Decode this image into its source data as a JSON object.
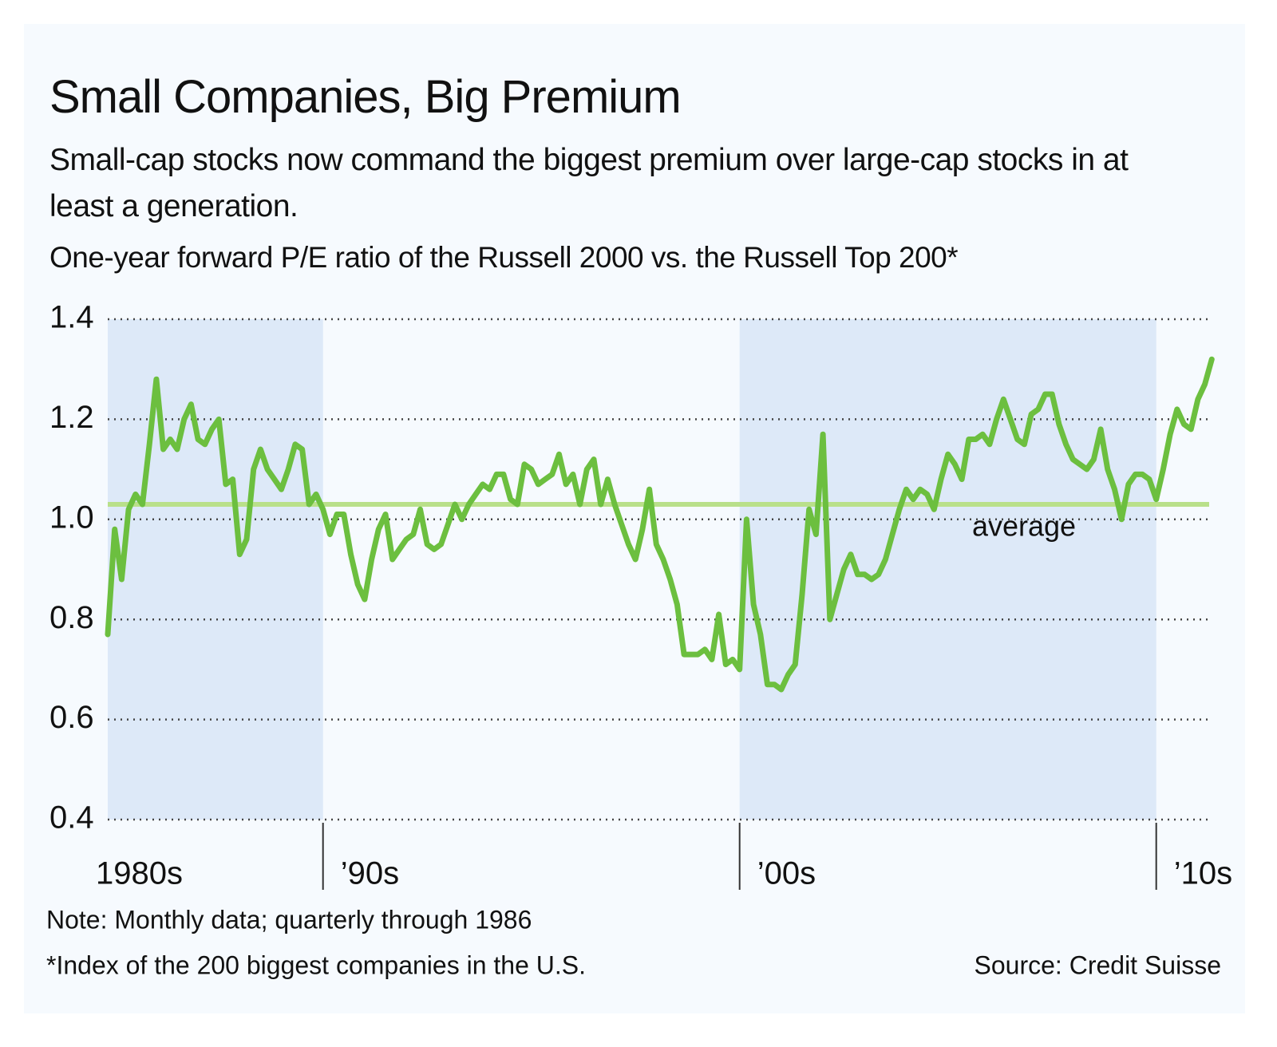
{
  "chart_data": {
    "type": "line",
    "title": "Small Companies, Big Premium",
    "subtitle": "Small-cap stocks now command the biggest premium over large-cap stocks in at least a generation.",
    "chart_title": "One-year forward P/E ratio of the Russell 2000 vs. the Russell Top 200*",
    "note": "Note: Monthly data; quarterly through 1986",
    "footnote": "*Index of the 200 biggest companies in the U.S.",
    "source": "Source: Credit Suisse",
    "categories": [
      "1980s",
      null,
      null,
      null,
      null,
      null,
      null,
      null,
      null,
      null,
      null,
      null,
      null,
      null,
      null,
      null,
      null,
      null,
      null,
      null,
      null,
      null,
      null,
      null,
      null,
      null,
      null,
      null,
      null,
      null,
      null,
      "’90s",
      null,
      null,
      null,
      null,
      null,
      null,
      null,
      null,
      null,
      null,
      null,
      null,
      null,
      null,
      null,
      null,
      null,
      null,
      null,
      null,
      null,
      null,
      null,
      null,
      null,
      null,
      null,
      null,
      null,
      null,
      null,
      null,
      null,
      null,
      null,
      null,
      null,
      null,
      null,
      null,
      null,
      null,
      null,
      null,
      null,
      null,
      null,
      null,
      null,
      null,
      null,
      null,
      null,
      null,
      null,
      null,
      null,
      null,
      null,
      "’00s",
      null,
      null,
      null,
      null,
      null,
      null,
      null,
      null,
      null,
      null,
      null,
      null,
      null,
      null,
      null,
      null,
      null,
      null,
      null,
      null,
      null,
      null,
      null,
      null,
      null,
      null,
      null,
      null,
      null,
      null,
      null,
      null,
      null,
      null,
      null,
      null,
      null,
      null,
      null,
      null,
      null,
      null,
      null,
      null,
      null,
      null,
      null,
      null,
      null,
      null,
      null,
      null,
      null,
      null,
      null,
      null,
      null,
      null,
      null,
      "’10s",
      null,
      null,
      null,
      null,
      null,
      null,
      null,
      null
    ],
    "series": [
      {
        "name": "P/E ratio",
        "color": "#6cbf3f",
        "values": [
          0.77,
          0.98,
          0.88,
          1.02,
          1.05,
          1.03,
          1.15,
          1.28,
          1.14,
          1.16,
          1.14,
          1.2,
          1.23,
          1.16,
          1.15,
          1.18,
          1.2,
          1.07,
          1.08,
          0.93,
          0.96,
          1.1,
          1.14,
          1.1,
          1.08,
          1.06,
          1.1,
          1.15,
          1.14,
          1.03,
          1.05,
          1.02,
          0.97,
          1.01,
          1.01,
          0.93,
          0.87,
          0.84,
          0.92,
          0.98,
          1.01,
          0.92,
          0.94,
          0.96,
          0.97,
          1.02,
          0.95,
          0.94,
          0.95,
          0.99,
          1.03,
          1.0,
          1.03,
          1.05,
          1.07,
          1.06,
          1.09,
          1.09,
          1.04,
          1.03,
          1.11,
          1.1,
          1.07,
          1.08,
          1.09,
          1.13,
          1.07,
          1.09,
          1.03,
          1.1,
          1.12,
          1.03,
          1.08,
          1.03,
          0.99,
          0.95,
          0.92,
          0.98,
          1.06,
          0.95,
          0.92,
          0.88,
          0.83,
          0.73,
          0.73,
          0.73,
          0.74,
          0.72,
          0.81,
          0.71,
          0.72,
          0.7,
          1.0,
          0.83,
          0.77,
          0.67,
          0.67,
          0.66,
          0.69,
          0.71,
          0.85,
          1.02,
          0.97,
          1.17,
          0.8,
          0.85,
          0.9,
          0.93,
          0.89,
          0.89,
          0.88,
          0.89,
          0.92,
          0.97,
          1.02,
          1.06,
          1.04,
          1.06,
          1.05,
          1.02,
          1.08,
          1.13,
          1.11,
          1.08,
          1.16,
          1.16,
          1.17,
          1.15,
          1.2,
          1.24,
          1.2,
          1.16,
          1.15,
          1.21,
          1.22,
          1.25,
          1.25,
          1.19,
          1.15,
          1.12,
          1.11,
          1.1,
          1.12,
          1.18,
          1.1,
          1.06,
          1.0,
          1.07,
          1.09,
          1.09,
          1.08,
          1.04,
          1.1,
          1.17,
          1.22,
          1.19,
          1.18,
          1.24,
          1.27,
          1.32
        ]
      }
    ],
    "ylim": [
      0.4,
      1.4
    ],
    "yticks": [
      0.4,
      0.6,
      0.8,
      {
        "value": 1,
        "label": "1.0"
      },
      1.2,
      1.4
    ],
    "grid": true,
    "average": {
      "value": 1.03,
      "label": "average",
      "color": "#b9e08a"
    },
    "shade_color": "#dde9f8"
  }
}
